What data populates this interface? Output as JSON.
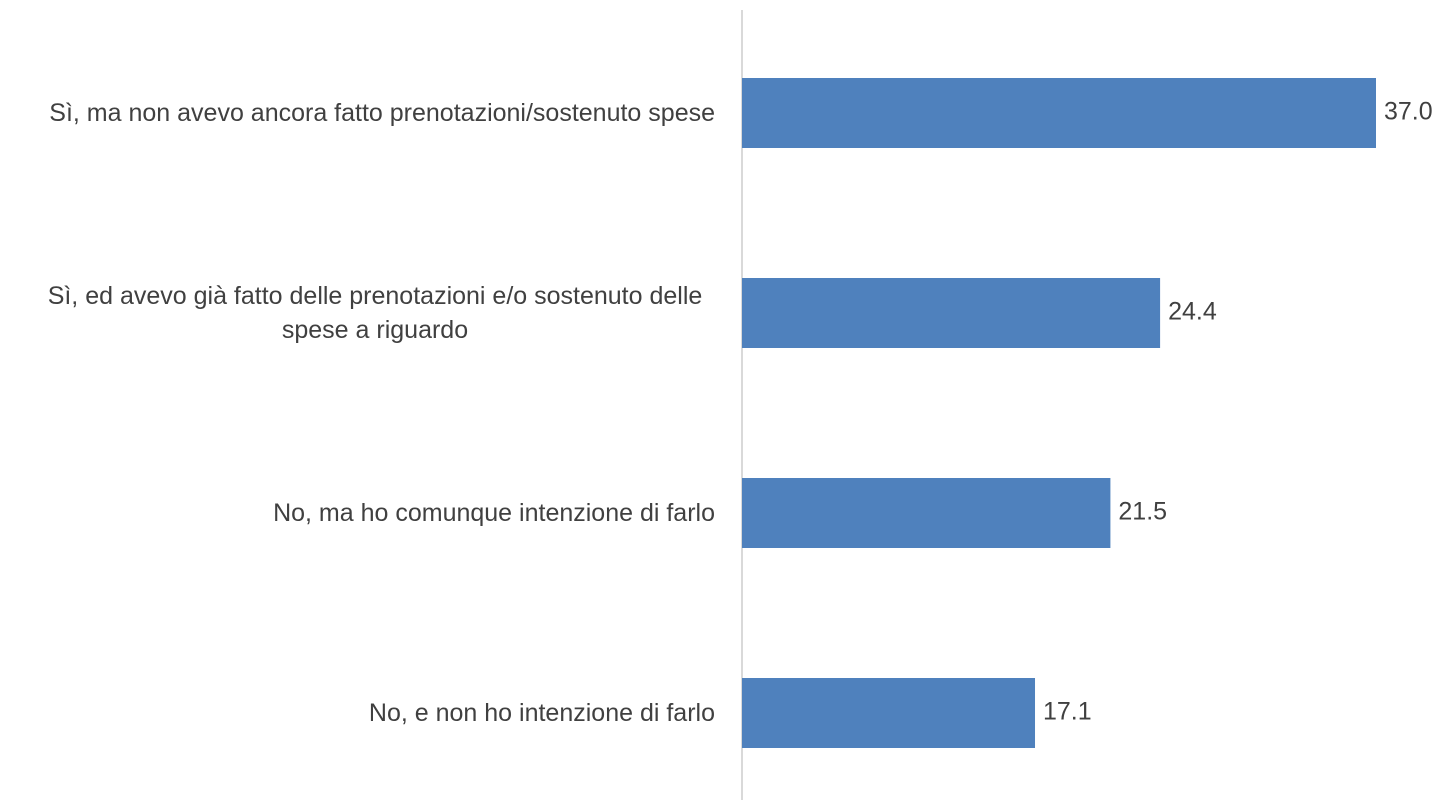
{
  "chart_data": {
    "type": "bar",
    "orientation": "horizontal",
    "categories": [
      "Sì, ma non avevo ancora fatto prenotazioni/sostenuto spese",
      "Sì, ed avevo già fatto delle prenotazioni e/o sostenuto delle spese a riguardo",
      "No, ma ho comunque intenzione di farlo",
      "No, e non ho intenzione di farlo"
    ],
    "values": [
      37.0,
      24.4,
      21.5,
      17.1
    ],
    "value_labels": [
      "37.0",
      "24.4",
      "21.5",
      "17.1"
    ],
    "color": "#4f81bd",
    "xlim": [
      0,
      37
    ]
  }
}
